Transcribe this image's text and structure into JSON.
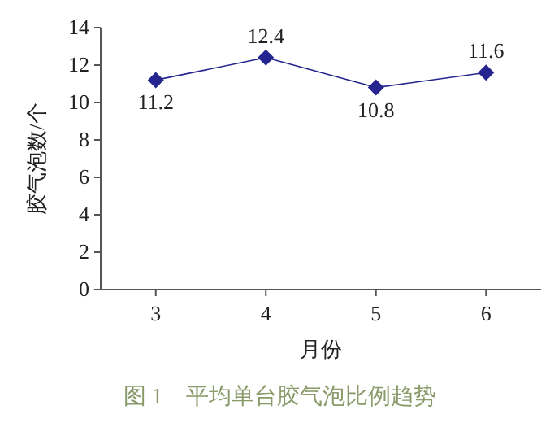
{
  "chart_data": {
    "type": "line",
    "title": "图 1　平均单台胶气泡比例趋势",
    "xlabel": "月份",
    "ylabel": "胶气泡数/个",
    "categories": [
      "3",
      "4",
      "5",
      "6"
    ],
    "series": [
      {
        "color": "#25258f",
        "values": [
          11.2,
          12.4,
          10.8,
          11.6
        ]
      }
    ],
    "ylim": [
      0,
      14
    ],
    "yticks": [
      0,
      2,
      4,
      6,
      8,
      10,
      12,
      14
    ],
    "marker": "diamond",
    "data_labels": true
  }
}
